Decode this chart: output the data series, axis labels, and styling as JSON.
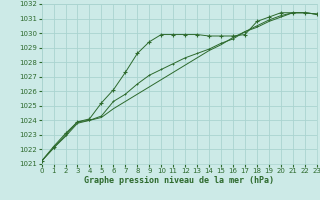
{
  "title": "Graphe pression niveau de la mer (hPa)",
  "bg_color": "#cceae7",
  "grid_color": "#aad4d0",
  "line_color": "#2d6a2d",
  "xlim": [
    0,
    23
  ],
  "ylim": [
    1021,
    1032
  ],
  "xticks": [
    0,
    1,
    2,
    3,
    4,
    5,
    6,
    7,
    8,
    9,
    10,
    11,
    12,
    13,
    14,
    15,
    16,
    17,
    18,
    19,
    20,
    21,
    22,
    23
  ],
  "yticks": [
    1021,
    1022,
    1023,
    1024,
    1025,
    1026,
    1027,
    1028,
    1029,
    1030,
    1031,
    1032
  ],
  "series1_x": [
    0,
    1,
    2,
    3,
    4,
    5,
    6,
    7,
    8,
    9,
    10,
    11,
    12,
    13,
    14,
    15,
    16,
    17,
    18,
    19,
    20,
    21,
    22,
    23
  ],
  "series1_y": [
    1021.2,
    1022.2,
    1023.1,
    1023.9,
    1024.1,
    1025.2,
    1026.1,
    1027.3,
    1028.6,
    1029.4,
    1029.9,
    1029.9,
    1029.9,
    1029.9,
    1029.8,
    1029.8,
    1029.8,
    1029.9,
    1030.8,
    1031.1,
    1031.4,
    1031.4,
    1031.4,
    1031.3
  ],
  "series2_x": [
    0,
    1,
    2,
    3,
    4,
    5,
    6,
    7,
    8,
    9,
    10,
    11,
    12,
    13,
    14,
    15,
    16,
    17,
    18,
    19,
    20,
    21,
    22,
    23
  ],
  "series2_y": [
    1021.2,
    1022.1,
    1023.0,
    1023.9,
    1024.0,
    1024.3,
    1025.3,
    1025.8,
    1026.5,
    1027.1,
    1027.5,
    1027.9,
    1028.3,
    1028.6,
    1028.9,
    1029.3,
    1029.6,
    1030.1,
    1030.5,
    1030.9,
    1031.2,
    1031.4,
    1031.4,
    1031.3
  ],
  "series3_x": [
    0,
    1,
    2,
    3,
    4,
    5,
    6,
    7,
    8,
    9,
    10,
    11,
    12,
    13,
    14,
    15,
    16,
    17,
    18,
    19,
    20,
    21,
    22,
    23
  ],
  "series3_y": [
    1021.2,
    1022.1,
    1022.9,
    1023.8,
    1024.0,
    1024.2,
    1024.8,
    1025.3,
    1025.8,
    1026.3,
    1026.8,
    1027.3,
    1027.8,
    1028.3,
    1028.8,
    1029.2,
    1029.7,
    1030.1,
    1030.4,
    1030.8,
    1031.1,
    1031.4,
    1031.4,
    1031.3
  ],
  "title_fontsize": 6.0,
  "tick_fontsize": 5.0
}
